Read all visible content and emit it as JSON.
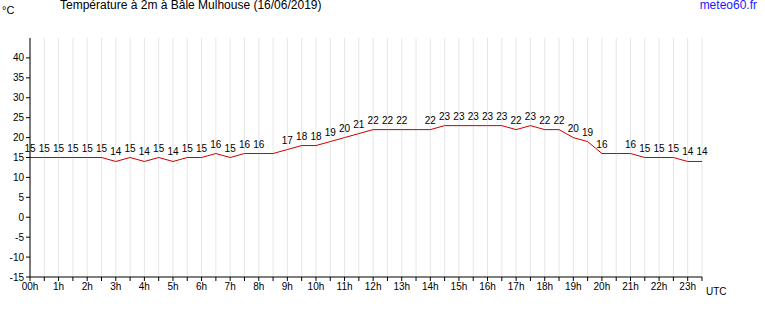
{
  "chart_data": {
    "type": "line",
    "title": "Température à 2m à Bâle Mulhouse (16/06/2019)",
    "source": "meteo60.fr",
    "y_label": "°C",
    "x_label": "UTC",
    "categories": [
      "00h",
      null,
      "1h",
      null,
      "2h",
      null,
      "3h",
      null,
      "4h",
      null,
      "5h",
      null,
      "6h",
      null,
      "7h",
      null,
      "8h",
      null,
      "9h",
      null,
      "10h",
      null,
      "11h",
      null,
      "12h",
      null,
      "13h",
      null,
      "14h",
      null,
      "15h",
      null,
      "16h",
      null,
      "17h",
      null,
      "18h",
      null,
      "19h",
      null,
      "20h",
      null,
      "21h",
      null,
      "22h",
      null,
      "23h",
      null
    ],
    "values": [
      15,
      15,
      15,
      15,
      15,
      15,
      14,
      15,
      14,
      15,
      14,
      15,
      15,
      16,
      15,
      16,
      16,
      16,
      17,
      18,
      18,
      19,
      20,
      21,
      22,
      22,
      22,
      22,
      22,
      23,
      23,
      23,
      23,
      23,
      22,
      23,
      22,
      22,
      20,
      19,
      16,
      16,
      16,
      15,
      15,
      15,
      14,
      14
    ],
    "value_labels": [
      "15",
      "15",
      "15",
      "15",
      "15",
      "15",
      "14",
      "15",
      "14",
      "15",
      "14",
      "15",
      "15",
      "16",
      "15",
      "16",
      "16",
      null,
      "17",
      "18",
      "18",
      "19",
      "20",
      "21",
      "22",
      "22",
      "22",
      null,
      "22",
      "23",
      "23",
      "23",
      "23",
      "23",
      "22",
      "23",
      "22",
      "22",
      "20",
      "19",
      "16",
      null,
      "16",
      "15",
      "15",
      "15",
      "14",
      "14"
    ],
    "color": "#cc0000",
    "ylim": [
      -15,
      45
    ],
    "yticks": [
      -15,
      -10,
      -5,
      0,
      5,
      10,
      15,
      20,
      25,
      30,
      35,
      40
    ],
    "grid": true,
    "data_labels": true
  }
}
